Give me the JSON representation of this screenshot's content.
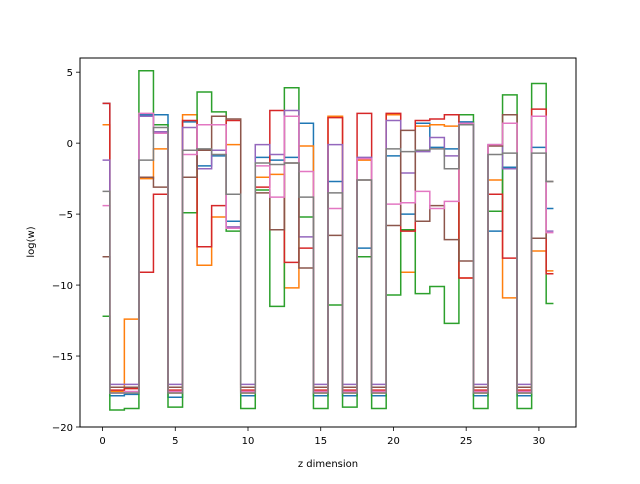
{
  "chart_data": {
    "type": "line",
    "drawstyle": "steps-mid",
    "title": "",
    "xlabel": "z dimension",
    "ylabel": "log(w)",
    "xlim": [
      -1.55,
      32.55
    ],
    "ylim": [
      -20,
      6
    ],
    "xticks": [
      0,
      5,
      10,
      15,
      20,
      25,
      30
    ],
    "yticks": [
      5,
      0,
      -5,
      -10,
      -15,
      -20
    ],
    "x": [
      0,
      1,
      2,
      3,
      4,
      5,
      6,
      7,
      8,
      9,
      10,
      11,
      12,
      13,
      14,
      15,
      16,
      17,
      18,
      19,
      20,
      21,
      22,
      23,
      24,
      25,
      26,
      27,
      28,
      29,
      30,
      31
    ],
    "series": [
      {
        "color": "#1f77b4",
        "values": [
          2.8,
          -17.8,
          -17.7,
          2.0,
          2.0,
          -17.9,
          1.5,
          -1.6,
          -0.9,
          -5.5,
          -17.8,
          -1.0,
          -1.2,
          -1.0,
          1.4,
          -17.8,
          -2.7,
          -17.8,
          -7.4,
          -17.8,
          -0.9,
          -5.0,
          1.4,
          -0.3,
          -0.4,
          1.5,
          -17.8,
          -6.2,
          -1.7,
          -17.8,
          -0.3,
          -4.6
        ]
      },
      {
        "color": "#ff7f0e",
        "values": [
          1.3,
          -17.5,
          -12.4,
          -2.5,
          -0.4,
          -17.6,
          2.0,
          -8.6,
          -5.2,
          -0.1,
          -17.6,
          -2.4,
          -2.2,
          -10.2,
          -0.2,
          -17.6,
          1.9,
          -17.6,
          -1.2,
          -17.6,
          2.0,
          -9.1,
          1.2,
          1.3,
          1.2,
          -9.5,
          -17.6,
          -2.6,
          -10.9,
          -17.6,
          -7.6,
          -9.0
        ]
      },
      {
        "color": "#2ca02c",
        "values": [
          -12.2,
          -18.8,
          -18.7,
          5.1,
          1.3,
          -18.6,
          -4.9,
          3.6,
          2.2,
          -6.2,
          -18.7,
          -3.3,
          -11.5,
          3.9,
          -5.2,
          -18.7,
          -11.4,
          -18.6,
          -8.0,
          -18.7,
          -10.7,
          -6.1,
          -10.6,
          -10.1,
          -12.7,
          2.0,
          -18.7,
          -4.8,
          3.4,
          -18.7,
          4.2,
          -11.3
        ]
      },
      {
        "color": "#d62728",
        "values": [
          2.8,
          -17.4,
          -17.3,
          -9.1,
          -3.6,
          -17.4,
          1.6,
          -7.3,
          -4.4,
          1.6,
          -17.4,
          -3.1,
          2.3,
          -8.4,
          -7.4,
          -17.4,
          1.8,
          -17.4,
          2.1,
          -17.4,
          2.1,
          -6.2,
          1.6,
          1.7,
          2.0,
          -9.5,
          -17.4,
          -3.6,
          -8.1,
          -17.4,
          2.4,
          -9.2
        ]
      },
      {
        "color": "#9467bd",
        "values": [
          -1.2,
          -17.0,
          -17.0,
          1.9,
          0.8,
          -17.0,
          1.1,
          -1.8,
          -0.5,
          -5.9,
          -17.0,
          -0.1,
          -0.8,
          2.3,
          -6.6,
          -17.0,
          -0.1,
          -17.0,
          -1.0,
          -17.0,
          1.6,
          -2.1,
          -0.6,
          0.4,
          -0.9,
          1.3,
          -17.0,
          -0.1,
          -1.8,
          -17.0,
          1.9,
          -6.2
        ]
      },
      {
        "color": "#8c564b",
        "values": [
          -8.0,
          -17.2,
          -17.2,
          -2.4,
          -3.1,
          -17.2,
          -2.4,
          -0.5,
          1.9,
          1.7,
          -17.2,
          -3.5,
          -6.1,
          -1.4,
          -8.8,
          -17.2,
          -6.5,
          -17.2,
          -2.6,
          -17.2,
          -5.8,
          0.9,
          -5.5,
          -4.4,
          -6.8,
          -8.3,
          -17.2,
          -0.2,
          2.0,
          -17.2,
          -6.7,
          -2.7
        ]
      },
      {
        "color": "#e377c2",
        "values": [
          -4.4,
          -17.6,
          -17.5,
          2.1,
          0.7,
          -17.5,
          -0.8,
          1.3,
          1.3,
          -6.0,
          -17.5,
          -1.6,
          -3.8,
          1.9,
          -2.0,
          -17.5,
          -4.6,
          -17.5,
          -1.1,
          -17.5,
          -4.3,
          -4.2,
          -3.4,
          -4.6,
          -4.1,
          1.4,
          -17.5,
          -0.1,
          1.4,
          -17.5,
          1.9,
          -6.3
        ]
      },
      {
        "color": "#7f7f7f",
        "values": [
          -3.4,
          -17.6,
          -17.6,
          -1.2,
          1.1,
          -17.6,
          -0.5,
          -0.4,
          -0.8,
          -3.6,
          -17.6,
          -1.4,
          -1.5,
          -1.4,
          -3.8,
          -17.6,
          -3.5,
          -17.6,
          -2.6,
          -17.6,
          -0.4,
          -0.6,
          -0.5,
          -0.4,
          -1.8,
          1.3,
          -17.6,
          -0.8,
          -0.7,
          -17.6,
          -0.7,
          -2.7
        ]
      }
    ],
    "legend": "none",
    "grid": false
  }
}
